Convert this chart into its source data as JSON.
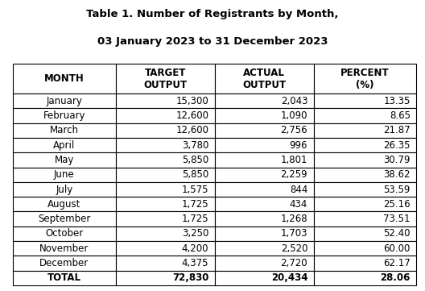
{
  "title_line1": "Table 1. Number of Registrants by Month,",
  "title_line2": "03 January 2023 to 31 December 2023",
  "col_headers": [
    "MONTH",
    "TARGET\nOUTPUT",
    "ACTUAL\nOUTPUT",
    "PERCENT\n(%)"
  ],
  "months": [
    "January",
    "February",
    "March",
    "April",
    "May",
    "June",
    "July",
    "August",
    "September",
    "October",
    "November",
    "December"
  ],
  "target_output": [
    "15,300",
    "12,600",
    "12,600",
    "3,780",
    "5,850",
    "5,850",
    "1,575",
    "1,725",
    "1,725",
    "3,250",
    "4,200",
    "4,375"
  ],
  "actual_output": [
    "2,043",
    "1,090",
    "2,756",
    "996",
    "1,801",
    "2,259",
    "844",
    "434",
    "1,268",
    "1,703",
    "2,520",
    "2,720"
  ],
  "percent": [
    "13.35",
    "8.65",
    "21.87",
    "26.35",
    "30.79",
    "38.62",
    "53.59",
    "25.16",
    "73.51",
    "52.40",
    "60.00",
    "62.17"
  ],
  "total_row": [
    "TOTAL",
    "72,830",
    "20,434",
    "28.06"
  ],
  "background_color": "#ffffff",
  "border_color": "#000000",
  "text_color": "#000000",
  "title_fontsize": 9.5,
  "header_fontsize": 8.5,
  "data_fontsize": 8.5,
  "figure_width": 5.28,
  "figure_height": 3.61,
  "dpi": 100
}
